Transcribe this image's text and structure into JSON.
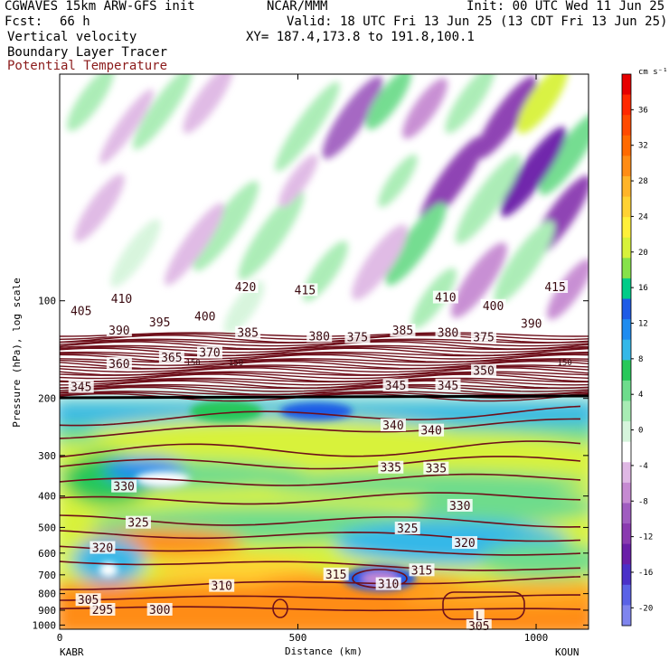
{
  "header": {
    "model": "CGWAVES 15km ARW-GFS init",
    "org": "NCAR/MMM",
    "init": "Init: 00 UTC Wed 11 Jun 25",
    "fcst_label": "Fcst:",
    "fcst_value": "66 h",
    "valid": "Valid: 18 UTC Fri 13 Jun 25 (13 CDT Fri 13 Jun 25)",
    "field1": "Vertical velocity",
    "xy": "XY= 187.4,173.8 to 191.8,100.1",
    "field2": "Boundary Layer Tracer",
    "field3": "Potential Temperature"
  },
  "colors": {
    "theta_contour": "#6e0f1a",
    "text_ptemp": "#8b1a1a"
  },
  "chart_data": {
    "type": "heatmap",
    "title": "Vertical velocity",
    "xlabel": "Distance (km)",
    "ylabel": "Pressure (hPa), log scale",
    "x_range": [
      0,
      1110
    ],
    "y_range_hpa": [
      1030,
      20
    ],
    "y_scale": "log",
    "x_ticks": [
      {
        "value": 0,
        "label": "0"
      },
      {
        "value": 500,
        "label": "500"
      },
      {
        "value": 1000,
        "label": "1000"
      }
    ],
    "y_ticks": [
      {
        "value": 100,
        "label": "100"
      },
      {
        "value": 200,
        "label": "200"
      },
      {
        "value": 300,
        "label": "300"
      },
      {
        "value": 400,
        "label": "400"
      },
      {
        "value": 500,
        "label": "500"
      },
      {
        "value": 600,
        "label": "600"
      },
      {
        "value": 700,
        "label": "700"
      },
      {
        "value": 800,
        "label": "800"
      },
      {
        "value": 900,
        "label": "900"
      },
      {
        "value": 1000,
        "label": "1000"
      }
    ],
    "endpoints": {
      "left": "KABR",
      "right": "KOUN"
    },
    "colorbar": {
      "unit": "cm s⁻¹",
      "levels": [
        -20,
        -16,
        -12,
        -8,
        -4,
        0,
        4,
        8,
        12,
        16,
        20,
        24,
        28,
        32,
        36
      ],
      "colors": [
        "#7f85ee",
        "#5a62e6",
        "#4a30c8",
        "#6a1fa8",
        "#8a3ab0",
        "#a05cc0",
        "#c68ad2",
        "#dfb8e4",
        "#ffffff",
        "#d6f5dc",
        "#a8ecb4",
        "#6edc8c",
        "#28c85a",
        "#34b8e8",
        "#1f8cf0",
        "#1e5be6",
        "#00cc88",
        "#86e24a",
        "#d8f23a",
        "#fff03a",
        "#ffd232",
        "#ffb428",
        "#ff8c14",
        "#ff6a00",
        "#ff4a00",
        "#ff2800",
        "#e60000"
      ]
    },
    "theta_contours": [
      {
        "label": "295",
        "x": 90,
        "p": 900
      },
      {
        "label": "300",
        "x": 210,
        "p": 900
      },
      {
        "label": "305",
        "x": 60,
        "p": 840
      },
      {
        "label": "305",
        "x": 880,
        "p": 1010
      },
      {
        "label": "310",
        "x": 340,
        "p": 760
      },
      {
        "label": "310",
        "x": 690,
        "p": 750
      },
      {
        "label": "315",
        "x": 580,
        "p": 700
      },
      {
        "label": "315",
        "x": 760,
        "p": 680
      },
      {
        "label": "320",
        "x": 90,
        "p": 580
      },
      {
        "label": "320",
        "x": 850,
        "p": 560
      },
      {
        "label": "325",
        "x": 165,
        "p": 485
      },
      {
        "label": "325",
        "x": 730,
        "p": 505
      },
      {
        "label": "330",
        "x": 135,
        "p": 375
      },
      {
        "label": "330",
        "x": 840,
        "p": 430
      },
      {
        "label": "335",
        "x": 695,
        "p": 328
      },
      {
        "label": "335",
        "x": 790,
        "p": 330
      },
      {
        "label": "340",
        "x": 700,
        "p": 243
      },
      {
        "label": "340",
        "x": 780,
        "p": 252
      },
      {
        "label": "345",
        "x": 45,
        "p": 185
      },
      {
        "label": "345",
        "x": 705,
        "p": 183
      },
      {
        "label": "345",
        "x": 815,
        "p": 183
      },
      {
        "label": "350",
        "x": 890,
        "p": 165
      },
      {
        "label": "360",
        "x": 125,
        "p": 157
      },
      {
        "label": "365",
        "x": 235,
        "p": 150
      },
      {
        "label": "370",
        "x": 315,
        "p": 145
      },
      {
        "label": "375",
        "x": 625,
        "p": 130
      },
      {
        "label": "375",
        "x": 890,
        "p": 130
      },
      {
        "label": "380",
        "x": 545,
        "p": 129
      },
      {
        "label": "380",
        "x": 815,
        "p": 126
      },
      {
        "label": "385",
        "x": 395,
        "p": 126
      },
      {
        "label": "385",
        "x": 720,
        "p": 124
      },
      {
        "label": "390",
        "x": 125,
        "p": 124
      },
      {
        "label": "390",
        "x": 990,
        "p": 118
      },
      {
        "label": "395",
        "x": 210,
        "p": 117
      },
      {
        "label": "400",
        "x": 305,
        "p": 112
      },
      {
        "label": "400",
        "x": 910,
        "p": 104
      },
      {
        "label": "405",
        "x": 45,
        "p": 108
      },
      {
        "label": "410",
        "x": 130,
        "p": 99
      },
      {
        "label": "410",
        "x": 810,
        "p": 98
      },
      {
        "label": "415",
        "x": 515,
        "p": 93
      },
      {
        "label": "415",
        "x": 1040,
        "p": 91
      },
      {
        "label": "420",
        "x": 390,
        "p": 91
      },
      {
        "label": "L",
        "x": 880,
        "p": 940
      }
    ],
    "tropopause_labels": [
      {
        "label": "150",
        "x": 280,
        "p": 155
      },
      {
        "label": "150",
        "x": 370,
        "p": 155
      },
      {
        "label": "150",
        "x": 1060,
        "p": 155
      }
    ]
  }
}
